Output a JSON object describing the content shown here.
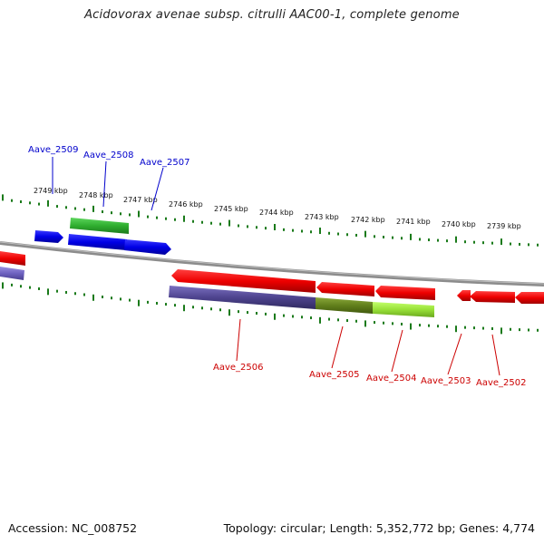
{
  "title": "Acidovorax avenae subsp. citrulli AAC00-1, complete genome",
  "footer": {
    "accession": "Accession: NC_008752",
    "summary": "Topology: circular; Length: 5,352,772 bp; Genes: 4,774"
  },
  "ruler": {
    "ticks": [
      "2749 kbp",
      "2748 kbp",
      "2747 kbp",
      "2746 kbp",
      "2745 kbp",
      "2744 kbp",
      "2743 kbp",
      "2742 kbp",
      "2741 kbp",
      "2740 kbp",
      "2739 kbp"
    ]
  },
  "genes": {
    "forward": [
      "Aave_2509",
      "Aave_2508",
      "Aave_2507"
    ],
    "reverse": [
      "Aave_2506",
      "Aave_2505",
      "Aave_2504",
      "Aave_2503",
      "Aave_2502"
    ]
  },
  "colors": {
    "forward_label": "#0000cc",
    "reverse_label": "#cc0000",
    "backbone": "#888888",
    "tick": "#1a7a1a",
    "forward_gene": "#0a0ae0",
    "reverse_gene": "#e80000",
    "green_feature": "#33b233",
    "purple_feature": "#5a4f9e",
    "olive_feature": "#6b8a1e",
    "lime_feature": "#9be53a"
  }
}
